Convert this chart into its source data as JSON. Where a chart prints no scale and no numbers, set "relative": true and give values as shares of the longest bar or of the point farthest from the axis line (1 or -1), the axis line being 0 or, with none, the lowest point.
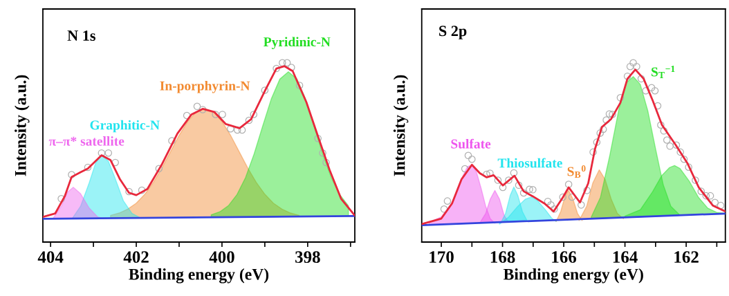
{
  "chart_data": [
    {
      "type": "area",
      "title": "N 1s",
      "xlabel": "Binding energy (eV)",
      "ylabel": "Intensity (a.u.)",
      "relative": true,
      "xlim": [
        404.18,
        396.9
      ],
      "xticks": [
        404,
        {
          "value": 403,
          "label": null
        },
        402,
        {
          "value": 401,
          "label": null
        },
        400,
        {
          "value": 399,
          "label": null
        },
        398,
        {
          "value": 397,
          "label": null
        }
      ],
      "series": [
        {
          "name": "In-porphyrin-N",
          "color": "#f28a30",
          "x": [
            402.6,
            402.4,
            402.2,
            402.0,
            401.8,
            401.6,
            401.4,
            401.2,
            401.0,
            400.8,
            400.6,
            400.4,
            400.2,
            400.0,
            399.8,
            399.6,
            399.4,
            399.2,
            399.0,
            398.8,
            398.6,
            398.4,
            398.2
          ],
          "values": [
            0.149,
            0.162,
            0.184,
            0.217,
            0.267,
            0.333,
            0.414,
            0.505,
            0.596,
            0.673,
            0.726,
            0.745,
            0.726,
            0.673,
            0.596,
            0.505,
            0.414,
            0.333,
            0.267,
            0.217,
            0.184,
            0.162,
            0.149
          ]
        },
        {
          "name": "Pyridinic-N",
          "color": "#22dd22",
          "x": [
            400.25,
            400.05,
            399.85,
            399.65,
            399.45,
            399.25,
            399.05,
            398.85,
            398.65,
            398.45,
            398.25,
            398.05,
            397.85,
            397.65,
            397.45,
            397.25,
            397.05
          ],
          "values": [
            0.152,
            0.169,
            0.203,
            0.265,
            0.36,
            0.492,
            0.647,
            0.798,
            0.909,
            0.95,
            0.909,
            0.798,
            0.647,
            0.492,
            0.36,
            0.265,
            0.203
          ]
        },
        {
          "name": "Graphitic-N",
          "color": "#22e4ee",
          "x": [
            403.5,
            403.3,
            403.1,
            402.95,
            402.81,
            402.65,
            402.5,
            402.3,
            402.1,
            401.9
          ],
          "values": [
            0.13,
            0.2,
            0.33,
            0.44,
            0.486,
            0.45,
            0.36,
            0.23,
            0.16,
            0.135
          ]
        },
        {
          "name": "π–π* satellite",
          "color": "#ee66ee",
          "x": [
            403.95,
            403.75,
            403.6,
            403.47,
            403.3,
            403.1,
            402.9,
            402.75
          ],
          "values": [
            0.13,
            0.2,
            0.28,
            0.306,
            0.27,
            0.19,
            0.14,
            0.13
          ]
        },
        {
          "type": "line",
          "color": "#3344dd",
          "x": [
            404.18,
            396.9
          ],
          "values": [
            0.13,
            0.145
          ]
        },
        {
          "type": "line",
          "color": "#e8283c",
          "x": [
            404.18,
            403.89,
            403.67,
            403.51,
            403.3,
            403.13,
            402.81,
            402.6,
            402.38,
            402.17,
            402.0,
            401.74,
            401.41,
            401.04,
            400.71,
            400.45,
            400.18,
            399.91,
            399.59,
            399.32,
            398.99,
            398.73,
            398.54,
            398.35,
            398.03,
            397.76,
            397.49,
            397.22,
            396.9
          ],
          "values": [
            0.14,
            0.16,
            0.255,
            0.363,
            0.39,
            0.41,
            0.484,
            0.457,
            0.35,
            0.275,
            0.262,
            0.296,
            0.43,
            0.605,
            0.712,
            0.743,
            0.726,
            0.658,
            0.635,
            0.685,
            0.847,
            0.968,
            0.981,
            0.954,
            0.78,
            0.59,
            0.403,
            0.242,
            0.148
          ]
        },
        {
          "type": "scatter",
          "marker": "circle",
          "color": "#b0b0b0",
          "x": [
            403.75,
            403.51,
            403.13,
            402.81,
            402.65,
            402.49,
            402.17,
            401.87,
            401.47,
            401.17,
            400.82,
            400.58,
            400.45,
            400.15,
            399.99,
            399.8,
            399.64,
            399.53,
            399.37,
            399.26,
            399.0,
            398.73,
            398.59,
            398.48,
            398.38,
            398.19,
            397.76,
            397.65,
            397.57
          ],
          "values": [
            0.242,
            0.376,
            0.417,
            0.497,
            0.497,
            0.444,
            0.282,
            0.289,
            0.41,
            0.565,
            0.706,
            0.757,
            0.739,
            0.712,
            0.712,
            0.632,
            0.625,
            0.625,
            0.679,
            0.712,
            0.847,
            0.968,
            1.0,
            1.0,
            0.974,
            0.874,
            0.578,
            0.497,
            0.444
          ]
        }
      ]
    },
    {
      "type": "area",
      "title": "S 2p",
      "xlabel": "Binding energy (eV)",
      "ylabel": "Intensity (a.u.)",
      "relative": true,
      "xlim": [
        170.64,
        160.72
      ],
      "xticks": [
        170,
        {
          "value": 169,
          "label": null
        },
        168,
        {
          "value": 167,
          "label": null
        },
        166,
        {
          "value": 165,
          "label": null
        },
        164,
        {
          "value": 163,
          "label": null
        },
        162,
        {
          "value": 161,
          "label": null
        }
      ],
      "series": [
        {
          "name": "Sulfate",
          "color": "#ee55ee",
          "x": [
            170.4,
            170.0,
            169.65,
            169.35,
            169.15,
            169.0,
            168.85,
            168.7,
            168.55,
            168.4,
            168.25
          ],
          "values": [
            0.11,
            0.14,
            0.22,
            0.35,
            0.42,
            0.431,
            0.39,
            0.3,
            0.2,
            0.13,
            0.105
          ]
        },
        {
          "color": "#ee55ee",
          "x": [
            168.75,
            168.55,
            168.4,
            168.25,
            168.1,
            167.95,
            167.8
          ],
          "values": [
            0.105,
            0.16,
            0.24,
            0.288,
            0.24,
            0.15,
            0.11
          ]
        },
        {
          "name": "Thiosulfate",
          "color": "#22e4ee",
          "x": [
            168.05,
            167.9,
            167.75,
            167.63,
            167.5,
            167.35,
            167.2
          ],
          "values": [
            0.11,
            0.16,
            0.26,
            0.308,
            0.26,
            0.17,
            0.12
          ]
        },
        {
          "color": "#22e4ee",
          "x": [
            168.1,
            167.8,
            167.5,
            167.25,
            167.05,
            166.85,
            166.6,
            166.4,
            166.25
          ],
          "values": [
            0.1,
            0.14,
            0.2,
            0.24,
            0.251,
            0.23,
            0.18,
            0.135,
            0.115
          ]
        },
        {
          "name": "S$_{B}$$^{0}$",
          "color": "#f28a30",
          "x": [
            166.25,
            166.1,
            165.95,
            165.84,
            165.7,
            165.55,
            165.4
          ],
          "values": [
            0.115,
            0.17,
            0.26,
            0.288,
            0.24,
            0.16,
            0.12
          ]
        },
        {
          "color": "#f28a30",
          "x": [
            165.5,
            165.25,
            165.05,
            164.84,
            164.65,
            164.45,
            164.25,
            164.05
          ],
          "values": [
            0.12,
            0.2,
            0.33,
            0.403,
            0.35,
            0.24,
            0.16,
            0.13
          ]
        },
        {
          "name": "S$_{T}$$^{−1}$",
          "color": "#22dd22",
          "x": [
            165.1,
            164.8,
            164.5,
            164.2,
            163.95,
            163.73,
            163.5,
            163.25,
            163.0,
            162.75,
            162.5,
            162.2
          ],
          "values": [
            0.14,
            0.25,
            0.48,
            0.74,
            0.89,
            0.923,
            0.88,
            0.73,
            0.52,
            0.32,
            0.2,
            0.15
          ]
        },
        {
          "color": "#22dd22",
          "x": [
            164.0,
            163.5,
            163.1,
            162.8,
            162.55,
            162.38,
            162.2,
            161.9,
            161.6,
            161.3,
            161.0,
            160.72
          ],
          "values": [
            0.145,
            0.18,
            0.28,
            0.37,
            0.415,
            0.427,
            0.41,
            0.34,
            0.25,
            0.19,
            0.165,
            0.16
          ]
        },
        {
          "type": "line",
          "color": "#3344dd",
          "x": [
            170.64,
            160.72
          ],
          "values": [
            0.094,
            0.159
          ]
        },
        {
          "type": "line",
          "color": "#e8283c",
          "x": [
            170.63,
            170.0,
            169.65,
            169.34,
            169.0,
            168.74,
            168.52,
            168.29,
            167.99,
            167.61,
            167.31,
            167.01,
            166.63,
            166.33,
            166.03,
            165.84,
            165.47,
            165.2,
            164.98,
            164.75,
            164.45,
            164.15,
            163.92,
            163.66,
            163.39,
            163.09,
            162.79,
            162.34,
            161.96,
            161.59,
            161.13,
            160.72
          ],
          "values": [
            0.101,
            0.131,
            0.215,
            0.35,
            0.431,
            0.384,
            0.361,
            0.373,
            0.316,
            0.37,
            0.283,
            0.255,
            0.215,
            0.171,
            0.249,
            0.305,
            0.221,
            0.328,
            0.519,
            0.642,
            0.687,
            0.777,
            0.911,
            0.962,
            0.911,
            0.788,
            0.653,
            0.541,
            0.44,
            0.305,
            0.204,
            0.171
          ]
        },
        {
          "type": "scatter",
          "marker": "circle",
          "color": "#b0b0b0",
          "x": [
            169.91,
            169.8,
            169.23,
            169.12,
            169.0,
            168.52,
            168.41,
            168.15,
            167.99,
            167.8,
            167.63,
            167.47,
            167.31,
            167.12,
            167.01,
            166.52,
            166.42,
            166.31,
            166.03,
            165.84,
            165.73,
            165.43,
            165.24,
            165.04,
            164.92,
            164.81,
            164.71,
            164.61,
            164.51,
            164.41,
            164.15,
            163.92,
            163.83,
            163.73,
            163.62,
            163.47,
            163.32,
            163.13,
            163.02,
            162.93,
            162.83,
            162.73,
            162.63,
            162.53,
            162.32,
            162.19,
            162.07,
            161.92,
            161.7,
            161.51,
            161.35,
            161.21,
            161.06,
            160.87
          ],
          "values": [
            0.184,
            0.229,
            0.409,
            0.483,
            0.462,
            0.378,
            0.384,
            0.345,
            0.305,
            0.345,
            0.386,
            0.317,
            0.274,
            0.294,
            0.292,
            0.227,
            0.207,
            0.184,
            0.251,
            0.322,
            0.251,
            0.207,
            0.288,
            0.502,
            0.557,
            0.608,
            0.629,
            0.681,
            0.715,
            0.712,
            0.805,
            0.925,
            0.979,
            1.0,
            0.979,
            0.911,
            0.844,
            0.861,
            0.844,
            0.76,
            0.653,
            0.62,
            0.569,
            0.535,
            0.541,
            0.502,
            0.462,
            0.418,
            0.345,
            0.283,
            0.258,
            0.258,
            0.221,
            0.204
          ]
        }
      ]
    }
  ]
}
